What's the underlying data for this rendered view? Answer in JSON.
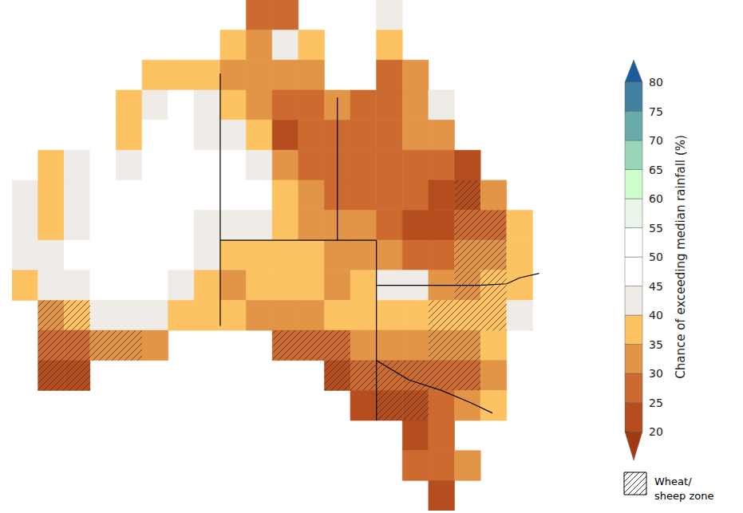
{
  "chart_data": {
    "type": "heatmap",
    "tick_labels": false,
    "x": [
      114,
      116,
      118,
      120,
      122,
      124,
      126,
      128,
      130,
      132,
      134,
      136,
      138,
      140,
      142,
      144,
      146,
      148,
      150,
      152,
      154
    ],
    "y": [
      -11,
      -13,
      -15,
      -17,
      -19,
      -21,
      -23,
      -25,
      -27,
      -29,
      -31,
      -33,
      -35,
      -37,
      -39,
      -41,
      -43
    ],
    "values": [
      [
        null,
        null,
        null,
        null,
        null,
        null,
        null,
        null,
        null,
        28,
        27,
        null,
        null,
        null,
        42,
        null,
        null,
        null,
        null,
        null,
        null
      ],
      [
        null,
        null,
        null,
        null,
        null,
        null,
        null,
        null,
        35,
        33,
        42,
        35,
        null,
        null,
        38,
        null,
        null,
        null,
        null,
        null,
        null
      ],
      [
        null,
        null,
        null,
        null,
        null,
        36,
        38,
        37,
        32,
        30,
        30,
        32,
        null,
        null,
        28,
        33,
        null,
        null,
        null,
        null,
        null
      ],
      [
        null,
        null,
        null,
        null,
        37,
        43,
        45,
        42,
        35,
        32,
        26,
        27,
        30,
        28,
        27,
        32,
        42,
        null,
        null,
        null,
        null
      ],
      [
        null,
        null,
        null,
        null,
        38,
        45,
        46,
        43,
        44,
        38,
        24,
        25,
        28,
        26,
        27,
        30,
        30,
        null,
        null,
        null,
        null
      ],
      [
        null,
        38,
        44,
        46,
        44,
        48,
        48,
        46,
        47,
        42,
        33,
        28,
        25,
        28,
        29,
        26,
        27,
        24,
        null,
        null,
        null
      ],
      [
        40,
        38,
        44,
        48,
        49,
        48,
        45,
        45,
        46,
        47,
        37,
        33,
        28,
        27,
        27,
        25,
        24,
        22,
        33,
        null,
        null
      ],
      [
        40,
        38,
        43,
        47,
        48,
        49,
        46,
        44,
        42,
        40,
        38,
        33,
        32,
        30,
        28,
        24,
        24,
        27,
        26,
        38,
        null
      ],
      [
        40,
        43,
        48,
        50,
        49,
        47,
        45,
        42,
        36,
        36,
        38,
        36,
        32,
        34,
        30,
        27,
        27,
        30,
        33,
        38,
        null
      ],
      [
        37,
        40,
        44,
        46,
        47,
        46,
        43,
        37,
        34,
        35,
        37,
        35,
        34,
        37,
        41,
        40,
        34,
        32,
        35,
        38,
        null
      ],
      [
        null,
        32,
        36,
        40,
        43,
        42,
        38,
        36,
        35,
        34,
        33,
        34,
        35,
        37,
        38,
        37,
        37,
        38,
        36,
        40,
        null
      ],
      [
        null,
        27,
        28,
        30,
        30,
        32,
        null,
        null,
        null,
        null,
        27,
        25,
        28,
        32,
        33,
        30,
        30,
        32,
        36,
        null,
        null
      ],
      [
        null,
        23,
        23,
        null,
        null,
        null,
        null,
        null,
        null,
        null,
        null,
        null,
        24,
        25,
        27,
        25,
        27,
        28,
        33,
        null,
        null
      ],
      [
        null,
        null,
        null,
        null,
        null,
        null,
        null,
        null,
        null,
        null,
        null,
        null,
        null,
        22,
        23,
        24,
        27,
        30,
        36,
        null,
        null
      ],
      [
        null,
        null,
        null,
        null,
        null,
        null,
        null,
        null,
        null,
        null,
        null,
        null,
        null,
        null,
        null,
        24,
        26,
        null,
        null,
        null,
        null
      ],
      [
        null,
        null,
        null,
        null,
        null,
        null,
        null,
        null,
        null,
        null,
        null,
        null,
        null,
        null,
        null,
        27,
        28,
        30,
        null,
        null,
        null
      ],
      [
        null,
        null,
        null,
        null,
        null,
        null,
        null,
        null,
        null,
        null,
        null,
        null,
        null,
        null,
        null,
        null,
        24,
        null,
        null,
        null,
        null
      ]
    ],
    "colorbar": {
      "label": "Chance of exceeding median rainfall (%)",
      "ticks": [
        20,
        25,
        30,
        35,
        40,
        45,
        50,
        55,
        60,
        65,
        70,
        75,
        80
      ],
      "colors": [
        "#a03a12",
        "#b54d1f",
        "#cc6a30",
        "#e29447",
        "#fdc261",
        "#efebe6",
        "#ffffff",
        "#ffffff",
        "#eaf5ea",
        "#ccffcc",
        "#99d5b9",
        "#69aaaa",
        "#42809f",
        "#1b5c9c"
      ]
    },
    "zone": {
      "label": "Wheat/sheep zone",
      "cells": [
        [
          116,
          -31
        ],
        [
          118,
          -31
        ],
        [
          116,
          -33
        ],
        [
          118,
          -33
        ],
        [
          120,
          -33
        ],
        [
          122,
          -33
        ],
        [
          116,
          -35
        ],
        [
          118,
          -35
        ],
        [
          134,
          -33
        ],
        [
          136,
          -33
        ],
        [
          138,
          -33
        ],
        [
          138,
          -35
        ],
        [
          140,
          -35
        ],
        [
          148,
          -23
        ],
        [
          148,
          -25
        ],
        [
          150,
          -25
        ],
        [
          148,
          -27
        ],
        [
          150,
          -27
        ],
        [
          148,
          -29
        ],
        [
          150,
          -29
        ],
        [
          146,
          -31
        ],
        [
          148,
          -31
        ],
        [
          150,
          -31
        ],
        [
          146,
          -33
        ],
        [
          148,
          -33
        ],
        [
          144,
          -35
        ],
        [
          146,
          -35
        ],
        [
          148,
          -35
        ],
        [
          142,
          -35
        ],
        [
          142,
          -37
        ],
        [
          144,
          -37
        ]
      ]
    },
    "state_borders": [
      [
        [
          129,
          -14.9
        ],
        [
          129,
          -31.7
        ]
      ],
      [
        [
          129,
          -26
        ],
        [
          141,
          -26
        ]
      ],
      [
        [
          138,
          -16.5
        ],
        [
          138,
          -26
        ]
      ],
      [
        [
          141,
          -26
        ],
        [
          141,
          -38
        ]
      ],
      [
        [
          141,
          -29
        ],
        [
          148.9,
          -29
        ],
        [
          151,
          -28.9
        ],
        [
          152,
          -28.5
        ],
        [
          153.5,
          -28.2
        ]
      ],
      [
        [
          141,
          -34
        ],
        [
          143.5,
          -35.3
        ],
        [
          146,
          -36
        ],
        [
          148.2,
          -36.8
        ],
        [
          149.9,
          -37.5
        ]
      ]
    ]
  }
}
